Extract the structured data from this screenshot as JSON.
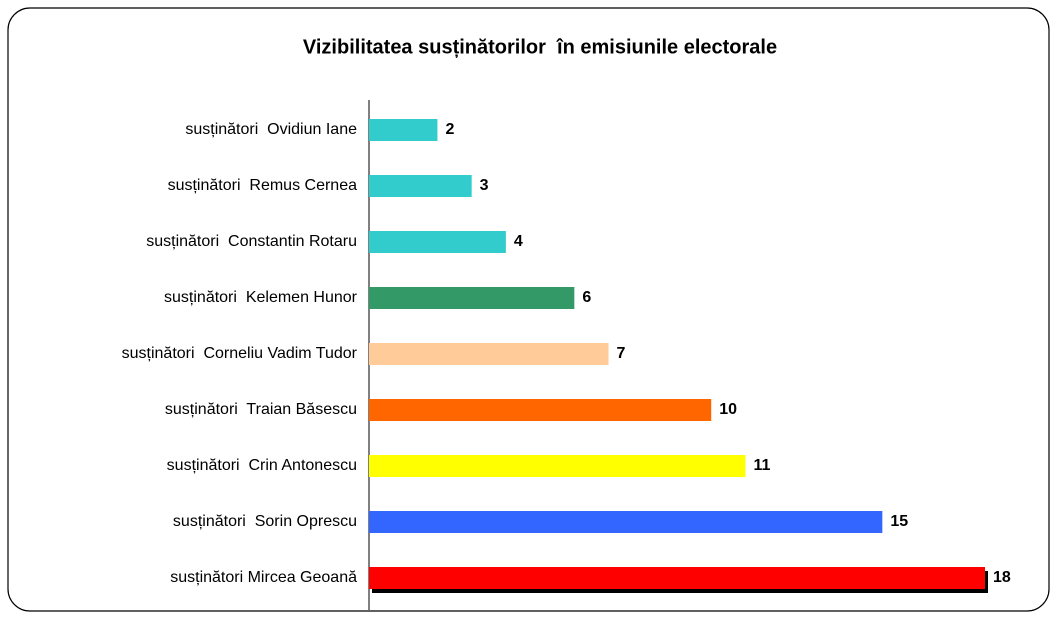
{
  "chart_data": {
    "type": "bar",
    "orientation": "horizontal",
    "title": "Vizibilitatea susținătorilor  în emisiunile electorale",
    "categories": [
      "susținători  Ovidiun Iane",
      "susținători  Remus Cernea",
      "susținători  Constantin Rotaru",
      "susținători  Kelemen Hunor",
      "susținători  Corneliu Vadim Tudor",
      "susținători  Traian Băsescu",
      "susținători  Crin Antonescu",
      "susținători  Sorin Oprescu",
      "susținători Mircea Geoană"
    ],
    "values": [
      2,
      3,
      4,
      6,
      7,
      10,
      11,
      15,
      18
    ],
    "colors": [
      "#33cccc",
      "#33cccc",
      "#33cccc",
      "#339966",
      "#ffcc99",
      "#ff6600",
      "#ffff00",
      "#3366ff",
      "#ff0000"
    ]
  }
}
